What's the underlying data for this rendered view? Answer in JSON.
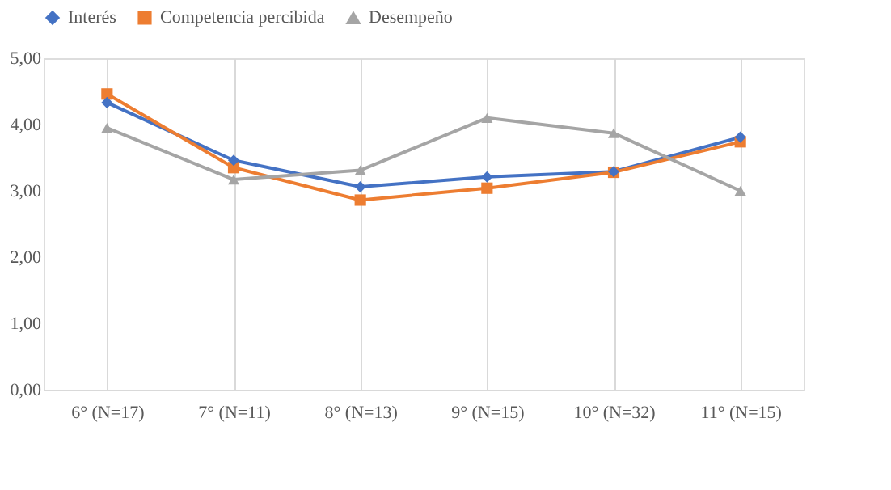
{
  "chart_data": {
    "type": "line",
    "categories": [
      "6° (N=17)",
      "7° (N=11)",
      "8° (N=13)",
      "9° (N=15)",
      "10° (N=32)",
      "11° (N=15)"
    ],
    "series": [
      {
        "name": "Interés",
        "color": "#4472c4",
        "marker": "diamond",
        "values": [
          4.33,
          3.46,
          3.06,
          3.21,
          3.29,
          3.81
        ]
      },
      {
        "name": "Competencia percibida",
        "color": "#ed7d31",
        "marker": "square",
        "values": [
          4.46,
          3.35,
          2.86,
          3.04,
          3.28,
          3.74
        ]
      },
      {
        "name": "Desempeño",
        "color": "#a5a5a5",
        "marker": "triangle",
        "values": [
          3.95,
          3.17,
          3.31,
          4.1,
          3.87,
          3.0
        ]
      }
    ],
    "ylim": [
      0,
      5
    ],
    "yticks": [
      {
        "value": 0,
        "label": "0,00"
      },
      {
        "value": 1,
        "label": "1,00"
      },
      {
        "value": 2,
        "label": "2,00"
      },
      {
        "value": 3,
        "label": "3,00"
      },
      {
        "value": 4,
        "label": "4,00"
      },
      {
        "value": 5,
        "label": "5,00"
      }
    ],
    "grid": "x",
    "legend": "top",
    "line_style": "solid"
  }
}
